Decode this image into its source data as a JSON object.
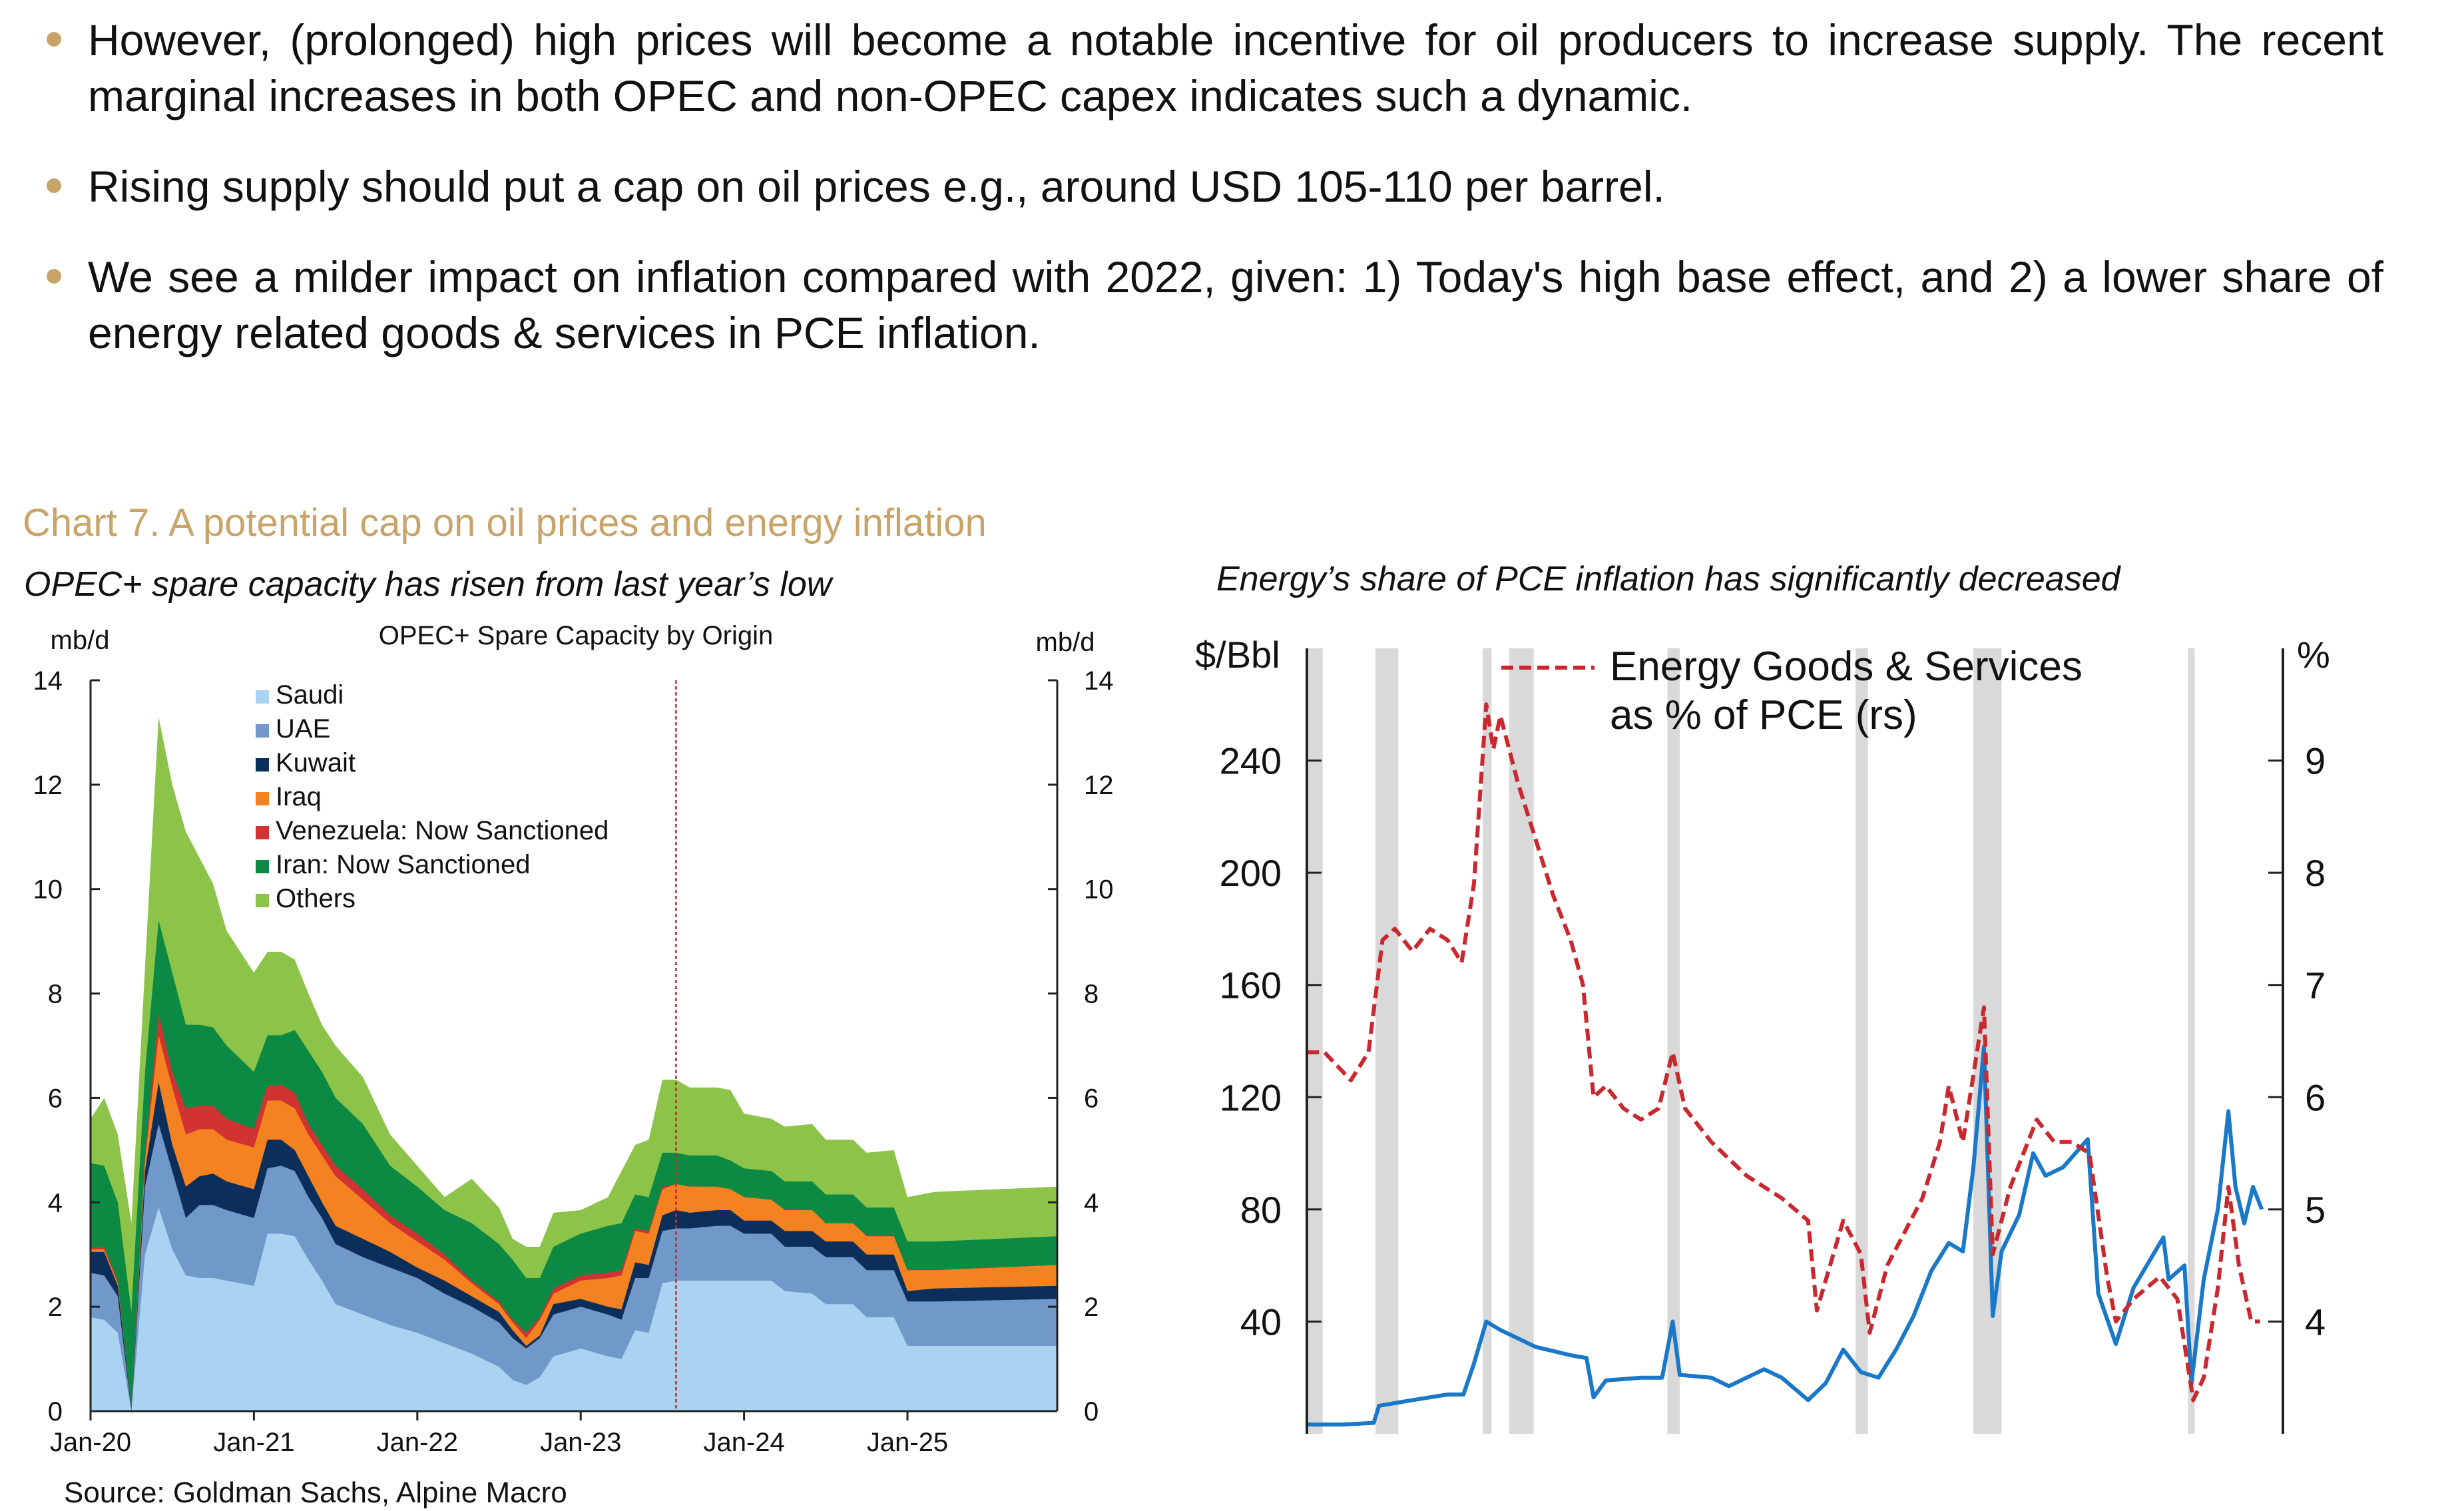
{
  "bullets": [
    "However, (prolonged) high prices will become a notable incentive for oil producers to increase supply. The recent marginal increases in both OPEC and non-OPEC capex indicates such a dynamic.",
    "Rising supply should put a cap on oil prices  e.g., around USD 105-110 per barrel.",
    "We see a milder impact on inflation compared with 2022, given: 1) Today's high base effect, and 2) a lower share of energy related goods & services in PCE inflation."
  ],
  "bullet_color": "#c9a46a",
  "chart_heading": "Chart 7. A potential cap on oil prices and energy inflation",
  "source": "Source: Goldman Sachs, Alpine Macro",
  "chart_data": [
    {
      "type": "area",
      "stacked": true,
      "subtitle": "OPEC+ spare capacity has risen from last year’s low",
      "title": "OPEC+ Spare Capacity by Origin",
      "ylabel_left": "mb/d",
      "ylabel_right": "mb/d",
      "ylim": [
        0,
        14
      ],
      "yticks": [
        0,
        2,
        4,
        6,
        8,
        10,
        12,
        14
      ],
      "xlim": [
        "2020-01",
        "2025-12"
      ],
      "xticks": [
        "Jan-20",
        "Jan-21",
        "Jan-22",
        "Jan-23",
        "Jan-24",
        "Jan-25"
      ],
      "vertical_marker": "2023-08",
      "marker_color": "#c8282e",
      "legend_position": "top-left",
      "series": [
        {
          "name": "Saudi",
          "color": "#a9d3f0"
        },
        {
          "name": "UAE",
          "color": "#7098c8"
        },
        {
          "name": "Kuwait",
          "color": "#0b2f5a"
        },
        {
          "name": "Iraq",
          "color": "#f58220"
        },
        {
          "name": "Venezuela: Now Sanctioned",
          "color": "#d13232"
        },
        {
          "name": "Iran: Now Sanctioned",
          "color": "#0c8a44"
        },
        {
          "name": "Others",
          "color": "#8cc44a"
        }
      ],
      "x": [
        "2020-01",
        "2020-02",
        "2020-03",
        "2020-04",
        "2020-05",
        "2020-06",
        "2020-07",
        "2020-08",
        "2020-09",
        "2020-10",
        "2020-11",
        "2021-01",
        "2021-02",
        "2021-03",
        "2021-04",
        "2021-05",
        "2021-06",
        "2021-07",
        "2021-09",
        "2021-11",
        "2022-01",
        "2022-03",
        "2022-05",
        "2022-07",
        "2022-08",
        "2022-09",
        "2022-10",
        "2022-11",
        "2023-01",
        "2023-03",
        "2023-04",
        "2023-05",
        "2023-06",
        "2023-07",
        "2023-08",
        "2023-09",
        "2023-11",
        "2023-12",
        "2024-01",
        "2024-03",
        "2024-04",
        "2024-06",
        "2024-07",
        "2024-09",
        "2024-10",
        "2024-12",
        "2025-01",
        "2025-03",
        "2025-12"
      ],
      "values": [
        [
          1.8,
          0.85,
          0.4,
          0.05,
          0.05,
          1.6,
          0.85
        ],
        [
          1.75,
          0.85,
          0.45,
          0.05,
          0.05,
          1.55,
          1.3
        ],
        [
          1.5,
          0.7,
          0.2,
          0.05,
          0.05,
          1.5,
          1.3
        ],
        [
          0,
          0,
          0.05,
          0,
          0,
          1.85,
          1.7
        ],
        [
          3.0,
          1.3,
          0.3,
          0.2,
          0.1,
          1.6,
          2.0
        ],
        [
          3.9,
          1.6,
          0.8,
          0.9,
          0.4,
          1.8,
          3.9
        ],
        [
          3.1,
          1.5,
          0.5,
          1.1,
          0.3,
          1.9,
          3.6
        ],
        [
          2.6,
          1.1,
          0.6,
          1.0,
          0.5,
          1.6,
          3.7
        ],
        [
          2.55,
          1.4,
          0.55,
          0.9,
          0.45,
          1.55,
          3.2
        ],
        [
          2.55,
          1.4,
          0.6,
          0.85,
          0.45,
          1.5,
          2.75
        ],
        [
          2.5,
          1.35,
          0.55,
          0.8,
          0.4,
          1.4,
          2.2
        ],
        [
          2.4,
          1.3,
          0.55,
          0.8,
          0.35,
          1.1,
          1.9
        ],
        [
          3.4,
          1.25,
          0.55,
          0.75,
          0.3,
          0.95,
          1.6
        ],
        [
          3.4,
          1.3,
          0.5,
          0.75,
          0.3,
          0.95,
          1.6
        ],
        [
          3.35,
          1.25,
          0.4,
          0.8,
          0.3,
          1.2,
          1.35
        ],
        [
          2.9,
          1.2,
          0.4,
          0.8,
          0.2,
          1.4,
          1.1
        ],
        [
          2.5,
          1.2,
          0.3,
          0.9,
          0.2,
          1.4,
          0.9
        ],
        [
          2.05,
          1.15,
          0.35,
          0.95,
          0.2,
          1.3,
          1.0
        ],
        [
          1.85,
          1.1,
          0.35,
          0.75,
          0.2,
          1.25,
          0.9
        ],
        [
          1.65,
          1.1,
          0.3,
          0.55,
          0.15,
          0.95,
          0.6
        ],
        [
          1.5,
          1.05,
          0.2,
          0.5,
          0.15,
          0.9,
          0.4
        ],
        [
          1.3,
          0.95,
          0.25,
          0.4,
          0.1,
          0.85,
          0.25
        ],
        [
          1.1,
          0.9,
          0.2,
          0.25,
          0.05,
          1.1,
          0.85
        ],
        [
          0.85,
          0.85,
          0.2,
          0.15,
          0.05,
          1.1,
          0.7
        ],
        [
          0.6,
          0.8,
          0.15,
          0.15,
          0.05,
          1.15,
          0.4
        ],
        [
          0.5,
          0.7,
          0.05,
          0.15,
          0.1,
          1.05,
          0.6
        ],
        [
          0.65,
          0.75,
          0.05,
          0.3,
          0.05,
          0.75,
          0.6
        ],
        [
          1.05,
          0.8,
          0.2,
          0.2,
          0.1,
          0.8,
          0.65
        ],
        [
          1.2,
          0.8,
          0.15,
          0.35,
          0.1,
          0.8,
          0.45
        ],
        [
          1.05,
          0.8,
          0.15,
          0.55,
          0.1,
          0.9,
          0.55
        ],
        [
          1.0,
          0.75,
          0.2,
          0.65,
          0.1,
          0.9,
          1.0
        ],
        [
          1.55,
          1.0,
          0.3,
          0.6,
          0.05,
          0.65,
          0.95
        ],
        [
          1.5,
          1.05,
          0.25,
          0.6,
          0.05,
          0.65,
          1.1
        ],
        [
          2.45,
          1.0,
          0.3,
          0.5,
          0.05,
          0.65,
          1.4
        ],
        [
          2.5,
          1.0,
          0.35,
          0.5,
          0,
          0.6,
          1.4
        ],
        [
          2.5,
          1.0,
          0.3,
          0.5,
          0,
          0.6,
          1.3
        ],
        [
          2.5,
          1.05,
          0.3,
          0.45,
          0,
          0.6,
          1.3
        ],
        [
          2.5,
          1.05,
          0.3,
          0.4,
          0,
          0.55,
          1.35
        ],
        [
          2.5,
          0.9,
          0.25,
          0.45,
          0,
          0.55,
          1.05
        ],
        [
          2.5,
          0.9,
          0.25,
          0.4,
          0,
          0.55,
          1.0
        ],
        [
          2.3,
          0.85,
          0.3,
          0.4,
          0,
          0.55,
          1.05
        ],
        [
          2.25,
          0.9,
          0.3,
          0.4,
          0,
          0.55,
          1.1
        ],
        [
          2.05,
          0.9,
          0.3,
          0.35,
          0,
          0.55,
          1.05
        ],
        [
          2.05,
          0.9,
          0.3,
          0.35,
          0,
          0.55,
          1.05
        ],
        [
          1.8,
          0.9,
          0.3,
          0.35,
          0,
          0.55,
          1.05
        ],
        [
          1.8,
          0.9,
          0.3,
          0.35,
          0,
          0.55,
          1.1
        ],
        [
          1.25,
          0.85,
          0.2,
          0.4,
          0,
          0.55,
          0.85
        ],
        [
          1.25,
          0.85,
          0.25,
          0.35,
          0,
          0.55,
          0.95
        ],
        [
          1.25,
          0.9,
          0.25,
          0.4,
          0,
          0.55,
          0.95
        ]
      ]
    },
    {
      "type": "line",
      "subtitle": "Energy’s share of PCE inflation has significantly decreased",
      "ylabel_left": "$/Bbl",
      "ylabel_right": "%",
      "ylim_left": [
        0,
        280
      ],
      "ylim_right": [
        3,
        10
      ],
      "yticks_left": [
        40,
        80,
        120,
        160,
        200,
        240
      ],
      "yticks_right": [
        4,
        5,
        6,
        7,
        8,
        9
      ],
      "xlim": [
        1970,
        2025.5
      ],
      "grid": false,
      "legend_position": "top",
      "recession_color": "#d9d9d9",
      "recessions": [
        [
          1969.9,
          1970.9
        ],
        [
          1973.9,
          1975.2
        ],
        [
          1980.0,
          1980.5
        ],
        [
          1981.5,
          1982.9
        ],
        [
          1990.5,
          1991.2
        ],
        [
          2001.2,
          2001.9
        ],
        [
          2007.9,
          2009.5
        ],
        [
          2020.1,
          2020.4
        ]
      ],
      "series": [
        {
          "axis": "left",
          "color": "#1a78c8",
          "style": "solid",
          "x": [
            1970,
            1972,
            1973.8,
            1974.1,
            1976,
            1978,
            1978.9,
            1979.5,
            1980.2,
            1981,
            1982,
            1983,
            1985,
            1985.9,
            1986.3,
            1987,
            1989,
            1990.2,
            1990.8,
            1991.2,
            1993,
            1994,
            1996,
            1997,
            1998.5,
            1999.5,
            2000.5,
            2001.5,
            2002.5,
            2003.5,
            2004.5,
            2005.5,
            2006.5,
            2007.3,
            2007.9,
            2008.5,
            2009.0,
            2009.5,
            2010.5,
            2011.3,
            2012,
            2013,
            2014.4,
            2015,
            2016,
            2017,
            2018.7,
            2019,
            2019.9,
            2020.3,
            2021,
            2021.8,
            2022.4,
            2022.8,
            2023.3,
            2023.8,
            2024.3
          ],
          "y": [
            3.3,
            3.3,
            3.9,
            10,
            12,
            14,
            14,
            25,
            40,
            37,
            34,
            31,
            28,
            27,
            13,
            19,
            20,
            20,
            40,
            21,
            20,
            17,
            23,
            20,
            12,
            18,
            30,
            22,
            20,
            30,
            42,
            58,
            68,
            65,
            95,
            138,
            42,
            65,
            78,
            100,
            92,
            95,
            105,
            50,
            32,
            52,
            70,
            55,
            60,
            18,
            55,
            80,
            115,
            88,
            75,
            88,
            80
          ]
        },
        {
          "axis": "right",
          "color": "#c8282e",
          "style": "dashed",
          "name": "Energy Goods & Services as % of PCE (rs)",
          "x": [
            1970,
            1971,
            1972.5,
            1973.5,
            1974.3,
            1975,
            1976,
            1977,
            1978,
            1978.8,
            1979.5,
            1980.2,
            1980.6,
            1981,
            1982,
            1983,
            1984,
            1985,
            1985.7,
            1986.3,
            1987,
            1988,
            1989,
            1990,
            1990.8,
            1991.5,
            1993,
            1995,
            1997,
            1998.5,
            1999,
            2000.5,
            2001.5,
            2002,
            2003,
            2004,
            2005,
            2006,
            2006.5,
            2007.3,
            2008.5,
            2009,
            2010,
            2011.5,
            2012.5,
            2013.5,
            2014.5,
            2015.5,
            2016,
            2017,
            2018.5,
            2019.5,
            2020.4,
            2021,
            2021.8,
            2022.4,
            2023,
            2023.7,
            2024.2
          ],
          "y": [
            6.4,
            6.4,
            6.15,
            6.4,
            7.4,
            7.5,
            7.3,
            7.5,
            7.4,
            7.2,
            7.9,
            9.5,
            9.1,
            9.4,
            8.8,
            8.3,
            7.8,
            7.4,
            7.0,
            6.0,
            6.1,
            5.9,
            5.8,
            5.9,
            6.4,
            5.9,
            5.6,
            5.3,
            5.1,
            4.9,
            4.1,
            4.9,
            4.6,
            3.9,
            4.5,
            4.8,
            5.1,
            5.6,
            6.1,
            5.6,
            6.8,
            4.6,
            5.2,
            5.8,
            5.6,
            5.6,
            5.5,
            4.4,
            4.0,
            4.2,
            4.4,
            4.2,
            3.3,
            3.5,
            4.3,
            5.2,
            4.5,
            4.0,
            4.0
          ]
        }
      ]
    }
  ]
}
